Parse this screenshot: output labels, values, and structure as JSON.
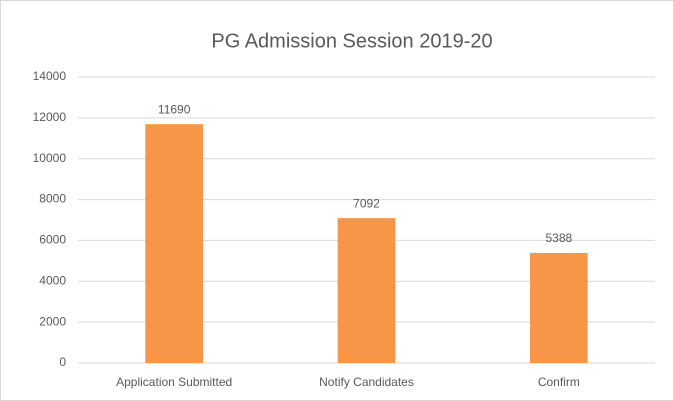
{
  "chart_data": {
    "type": "bar",
    "title": "PG Admission Session 2019-20",
    "categories": [
      "Application Submitted",
      "Notify Candidates",
      "Confirm"
    ],
    "values": [
      11690,
      7092,
      5388
    ],
    "color": "#f79646",
    "ylim": [
      0,
      14000
    ],
    "yticks": [
      0,
      2000,
      4000,
      6000,
      8000,
      10000,
      12000,
      14000
    ],
    "grid": true
  }
}
